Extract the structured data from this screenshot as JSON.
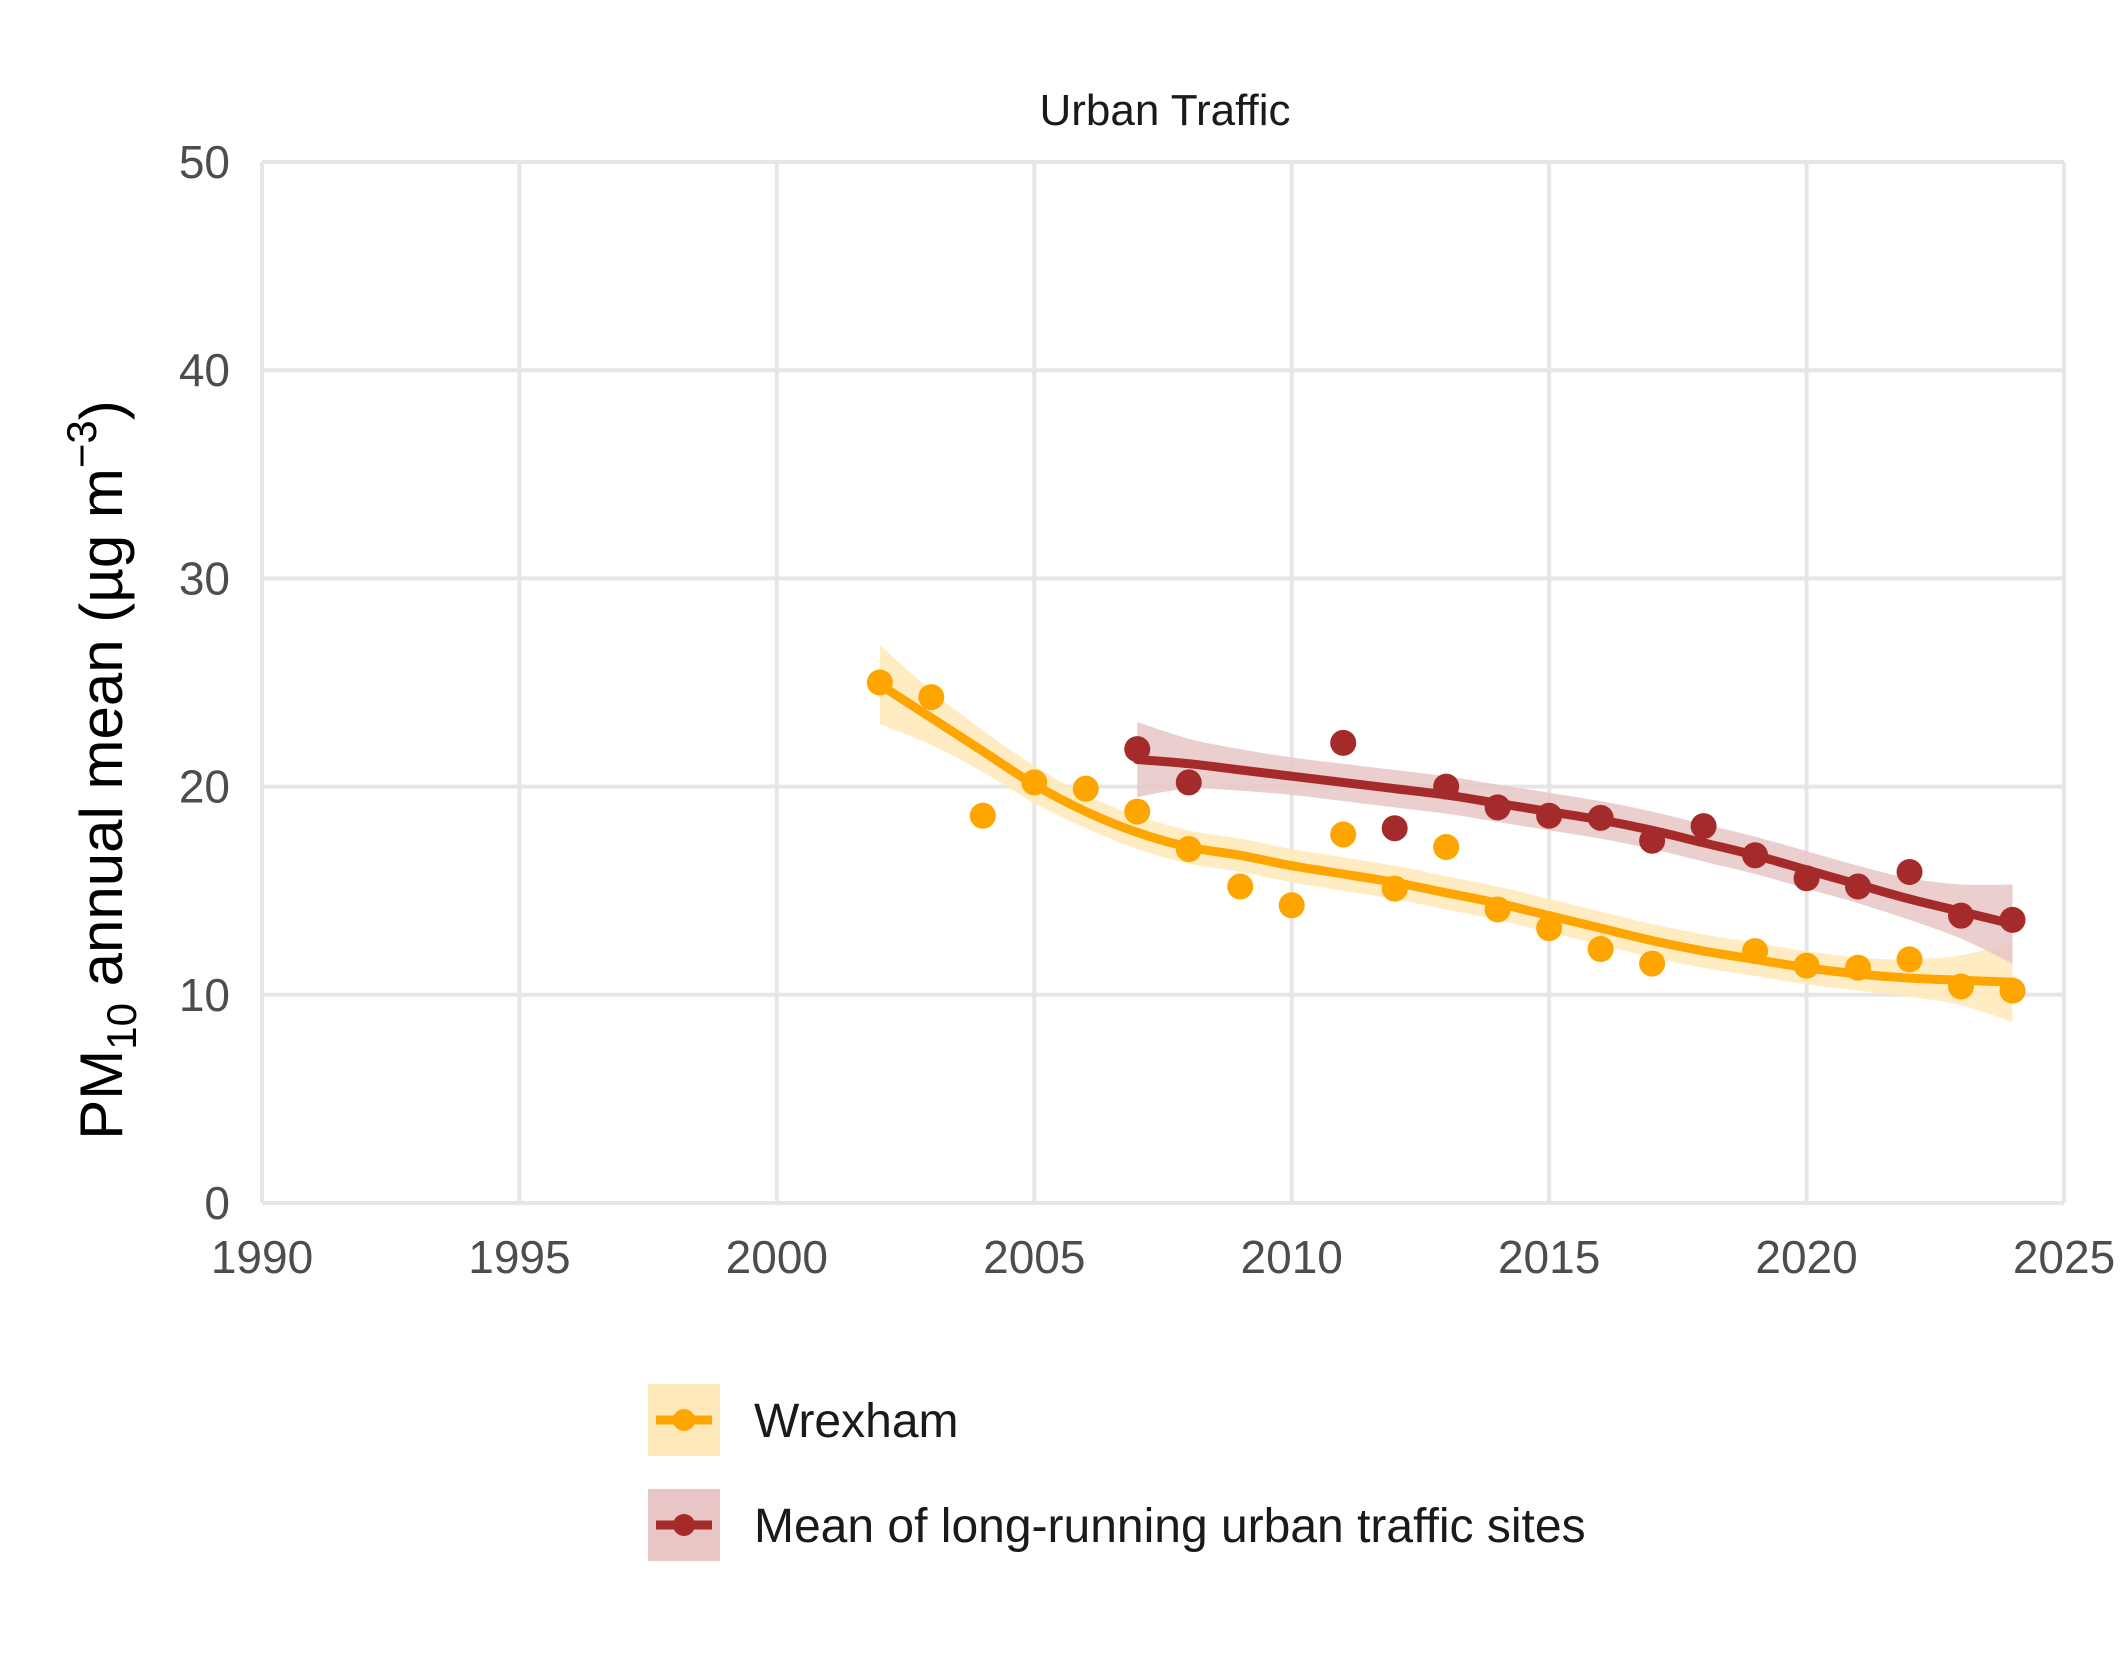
{
  "chart_data": {
    "type": "line",
    "title": "Urban Traffic",
    "ylabel": {
      "pm": "PM",
      "sub": "10",
      "rest": " annual mean (µg m",
      "sup": "−3",
      "close": ")"
    },
    "xlabel": "",
    "xlim": [
      1990,
      2025
    ],
    "ylim": [
      0,
      50
    ],
    "x_ticks": [
      "1990",
      "1995",
      "2000",
      "2005",
      "2010",
      "2015",
      "2020",
      "2025"
    ],
    "y_ticks": [
      "0",
      "10",
      "20",
      "30",
      "40",
      "50"
    ],
    "grid": true,
    "legend_position": "bottom",
    "series": [
      {
        "name": "Wrexham",
        "color": "#FFA500",
        "ribbon_color": "#FFE9B8",
        "points": [
          [
            2002,
            25.0
          ],
          [
            2003,
            24.3
          ],
          [
            2004,
            18.6
          ],
          [
            2005,
            20.2
          ],
          [
            2006,
            19.9
          ],
          [
            2007,
            18.8
          ],
          [
            2008,
            17.0
          ],
          [
            2009,
            15.2
          ],
          [
            2010,
            14.3
          ],
          [
            2011,
            17.7
          ],
          [
            2012,
            15.1
          ],
          [
            2013,
            17.1
          ],
          [
            2014,
            14.1
          ],
          [
            2015,
            13.2
          ],
          [
            2016,
            12.2
          ],
          [
            2017,
            11.5
          ],
          [
            2018,
            null
          ],
          [
            2019,
            12.1
          ],
          [
            2020,
            11.4
          ],
          [
            2021,
            11.3
          ],
          [
            2022,
            11.7
          ],
          [
            2023,
            10.4
          ],
          [
            2024,
            10.2
          ]
        ],
        "smooth": [
          [
            2002,
            24.9
          ],
          [
            2003,
            23.3
          ],
          [
            2004,
            21.7
          ],
          [
            2005,
            20.1
          ],
          [
            2006,
            18.8
          ],
          [
            2007,
            17.8
          ],
          [
            2008,
            17.1
          ],
          [
            2009,
            16.7
          ],
          [
            2010,
            16.2
          ],
          [
            2011,
            15.8
          ],
          [
            2012,
            15.4
          ],
          [
            2013,
            14.9
          ],
          [
            2014,
            14.4
          ],
          [
            2015,
            13.8
          ],
          [
            2016,
            13.2
          ],
          [
            2017,
            12.6
          ],
          [
            2018,
            12.1
          ],
          [
            2019,
            11.7
          ],
          [
            2020,
            11.3
          ],
          [
            2021,
            11.0
          ],
          [
            2022,
            10.8
          ],
          [
            2023,
            10.7
          ],
          [
            2024,
            10.6
          ]
        ],
        "band": [
          1.9,
          1.3,
          1.0,
          0.9,
          0.8,
          0.8,
          0.8,
          0.8,
          0.8,
          0.8,
          0.8,
          0.8,
          0.8,
          0.8,
          0.8,
          0.8,
          0.8,
          0.8,
          0.8,
          0.8,
          0.9,
          1.2,
          1.9
        ]
      },
      {
        "name": "Mean of long-running urban traffic sites",
        "color": "#A52A2A",
        "ribbon_color": "#E8C6C6",
        "points": [
          [
            2007,
            21.8
          ],
          [
            2008,
            20.2
          ],
          [
            2011,
            22.1
          ],
          [
            2012,
            18.0
          ],
          [
            2013,
            20.0
          ],
          [
            2014,
            19.0
          ],
          [
            2015,
            18.6
          ],
          [
            2016,
            18.5
          ],
          [
            2017,
            17.4
          ],
          [
            2018,
            18.1
          ],
          [
            2019,
            16.7
          ],
          [
            2020,
            15.6
          ],
          [
            2021,
            15.2
          ],
          [
            2022,
            15.9
          ],
          [
            2023,
            13.8
          ],
          [
            2024,
            13.6
          ]
        ],
        "smooth": [
          [
            2007,
            21.3
          ],
          [
            2008,
            21.1
          ],
          [
            2009,
            20.8
          ],
          [
            2010,
            20.5
          ],
          [
            2011,
            20.2
          ],
          [
            2012,
            19.9
          ],
          [
            2013,
            19.6
          ],
          [
            2014,
            19.2
          ],
          [
            2015,
            18.8
          ],
          [
            2016,
            18.4
          ],
          [
            2017,
            17.9
          ],
          [
            2018,
            17.3
          ],
          [
            2019,
            16.7
          ],
          [
            2020,
            16.0
          ],
          [
            2021,
            15.3
          ],
          [
            2022,
            14.6
          ],
          [
            2023,
            14.0
          ],
          [
            2024,
            13.4
          ]
        ],
        "band": [
          1.8,
          1.2,
          1.0,
          0.9,
          0.9,
          0.9,
          0.9,
          0.9,
          0.9,
          0.9,
          0.9,
          0.9,
          0.9,
          0.9,
          0.9,
          1.0,
          1.3,
          1.9
        ]
      }
    ]
  }
}
